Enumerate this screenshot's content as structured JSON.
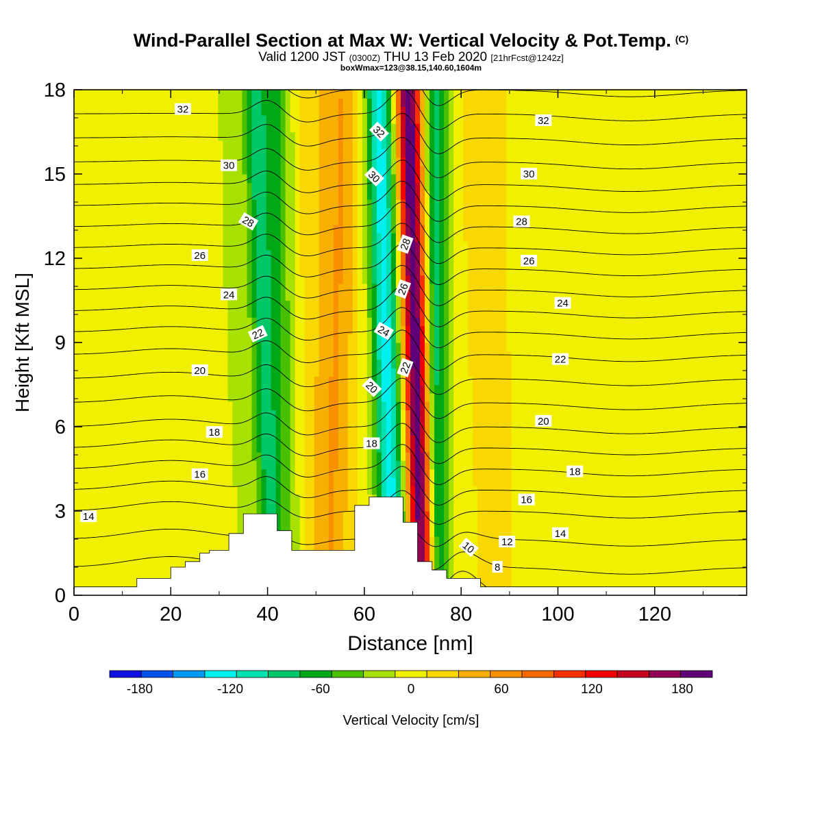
{
  "title": {
    "main": "Wind-Parallel Section at Max W: Vertical Velocity & Pot.Temp.",
    "copyright": "(C)",
    "valid_prefix": "Valid 1200 JST",
    "valid_utc": "(0300Z)",
    "valid_date": "THU 13 Feb 2020",
    "forecast": "[21hrFcst@1242z]",
    "box": "boxWmax=123@38.15,140.60,1604m"
  },
  "colorbar": {
    "label": "Vertical Velocity [cm/s]",
    "ticks": [
      "-180",
      "-120",
      "-60",
      "0",
      "60",
      "120",
      "180"
    ],
    "bounds": [
      -200,
      200
    ],
    "colors": [
      "#1010e0",
      "#0050f0",
      "#0098f0",
      "#00f0f0",
      "#00e0b0",
      "#00c868",
      "#00a818",
      "#48c000",
      "#a8e000",
      "#f0f000",
      "#f8d800",
      "#f8b000",
      "#f89000",
      "#f86800",
      "#f83000",
      "#f00000",
      "#c80020",
      "#900050",
      "#600078"
    ]
  },
  "chart_data": {
    "type": "heatmap",
    "xlabel": "Distance [nm]",
    "ylabel": "Height [Kft MSL]",
    "xlim": [
      0,
      139
    ],
    "ylim": [
      0,
      18
    ],
    "xticks": [
      "0",
      "20",
      "40",
      "60",
      "80",
      "100",
      "120"
    ],
    "yticks": [
      "0",
      "3",
      "6",
      "9",
      "12",
      "15",
      "18"
    ],
    "terrain": [
      [
        0,
        0.3
      ],
      [
        13,
        0.3
      ],
      [
        13,
        0.6
      ],
      [
        20,
        0.6
      ],
      [
        20,
        1.0
      ],
      [
        23,
        1.0
      ],
      [
        23,
        1.2
      ],
      [
        26,
        1.2
      ],
      [
        26,
        1.5
      ],
      [
        28,
        1.5
      ],
      [
        28,
        1.6
      ],
      [
        32,
        1.6
      ],
      [
        32,
        2.2
      ],
      [
        35,
        2.2
      ],
      [
        35,
        2.9
      ],
      [
        42,
        2.9
      ],
      [
        42,
        2.3
      ],
      [
        45,
        2.3
      ],
      [
        45,
        1.6
      ],
      [
        58,
        1.6
      ],
      [
        58,
        3.2
      ],
      [
        61,
        3.2
      ],
      [
        61,
        3.5
      ],
      [
        68,
        3.5
      ],
      [
        68,
        2.6
      ],
      [
        71,
        2.6
      ],
      [
        71,
        1.2
      ],
      [
        74,
        1.2
      ],
      [
        74,
        0.9
      ],
      [
        77,
        0.9
      ],
      [
        77,
        0.6
      ],
      [
        84,
        0.6
      ],
      [
        84,
        0.3
      ],
      [
        139,
        0.3
      ]
    ],
    "velocity_field": {
      "background": 5,
      "features": [
        {
          "x_top": 41,
          "x_bot": 43,
          "w": 5,
          "value": -70
        },
        {
          "x_top": 37,
          "x_bot": 41,
          "w": 2,
          "value": -40
        },
        {
          "x_top": 48,
          "x_bot": 46,
          "w": 7,
          "value": 30
        },
        {
          "x_top": 56,
          "x_bot": 53,
          "w": 3.5,
          "value": 40
        },
        {
          "x_top": 63,
          "x_bot": 66,
          "w": 3,
          "value": -130
        },
        {
          "x_top": 69,
          "x_bot": 72,
          "w": 2.5,
          "value": 195
        },
        {
          "x_top": 75,
          "x_bot": 75,
          "w": 2.5,
          "value": -90
        },
        {
          "x_top": 30,
          "x_bot": 30,
          "w": 14,
          "value": -15
        },
        {
          "x_top": 105,
          "x_bot": 100,
          "w": 15,
          "value": -15
        },
        {
          "x_top": 128,
          "x_bot": 128,
          "w": 8,
          "value": -10
        },
        {
          "x_top": 85,
          "x_bot": 88,
          "w": 5,
          "value": 20
        }
      ]
    },
    "theta_levels": [
      6,
      7,
      8,
      9,
      10,
      11,
      12,
      13,
      14,
      15,
      16,
      17,
      18,
      19,
      20,
      21,
      22,
      23,
      24,
      25,
      26,
      27,
      28,
      29,
      30,
      31,
      32,
      33
    ],
    "contour_labels": [
      {
        "text": "32",
        "x": 22.5,
        "y": 17.3,
        "rot": 0
      },
      {
        "text": "30",
        "x": 32,
        "y": 15.3,
        "rot": 0
      },
      {
        "text": "28",
        "x": 36,
        "y": 13.3,
        "rot": 30
      },
      {
        "text": "26",
        "x": 26,
        "y": 12.1,
        "rot": 0
      },
      {
        "text": "24",
        "x": 32,
        "y": 10.7,
        "rot": 0
      },
      {
        "text": "22",
        "x": 38,
        "y": 9.3,
        "rot": -25
      },
      {
        "text": "20",
        "x": 26,
        "y": 8.0,
        "rot": 0
      },
      {
        "text": "18",
        "x": 29,
        "y": 5.8,
        "rot": 0
      },
      {
        "text": "16",
        "x": 26,
        "y": 4.3,
        "rot": 0
      },
      {
        "text": "14",
        "x": 3,
        "y": 2.8,
        "rot": 0
      },
      {
        "text": "32",
        "x": 63,
        "y": 16.5,
        "rot": 45
      },
      {
        "text": "30",
        "x": 62,
        "y": 14.9,
        "rot": 45
      },
      {
        "text": "28",
        "x": 68.5,
        "y": 12.5,
        "rot": -70
      },
      {
        "text": "26",
        "x": 68,
        "y": 10.9,
        "rot": -70
      },
      {
        "text": "24",
        "x": 64,
        "y": 9.4,
        "rot": 30
      },
      {
        "text": "22",
        "x": 68.5,
        "y": 8.1,
        "rot": -70
      },
      {
        "text": "20",
        "x": 61.5,
        "y": 7.4,
        "rot": 45
      },
      {
        "text": "18",
        "x": 61.5,
        "y": 5.4,
        "rot": 0
      },
      {
        "text": "32",
        "x": 97,
        "y": 16.9,
        "rot": 0
      },
      {
        "text": "30",
        "x": 94,
        "y": 15.0,
        "rot": 0
      },
      {
        "text": "28",
        "x": 92.5,
        "y": 13.3,
        "rot": 0
      },
      {
        "text": "26",
        "x": 94,
        "y": 11.9,
        "rot": 0
      },
      {
        "text": "24",
        "x": 101,
        "y": 10.4,
        "rot": 0
      },
      {
        "text": "22",
        "x": 100.5,
        "y": 8.4,
        "rot": 0
      },
      {
        "text": "20",
        "x": 97,
        "y": 6.2,
        "rot": 0
      },
      {
        "text": "18",
        "x": 103.5,
        "y": 4.4,
        "rot": 0
      },
      {
        "text": "16",
        "x": 93.5,
        "y": 3.4,
        "rot": 0
      },
      {
        "text": "14",
        "x": 100.5,
        "y": 2.2,
        "rot": 0
      },
      {
        "text": "12",
        "x": 89.5,
        "y": 1.9,
        "rot": 0
      },
      {
        "text": "10",
        "x": 81.5,
        "y": 1.7,
        "rot": 40
      },
      {
        "text": "8",
        "x": 87.5,
        "y": 1.0,
        "rot": 0
      }
    ]
  }
}
